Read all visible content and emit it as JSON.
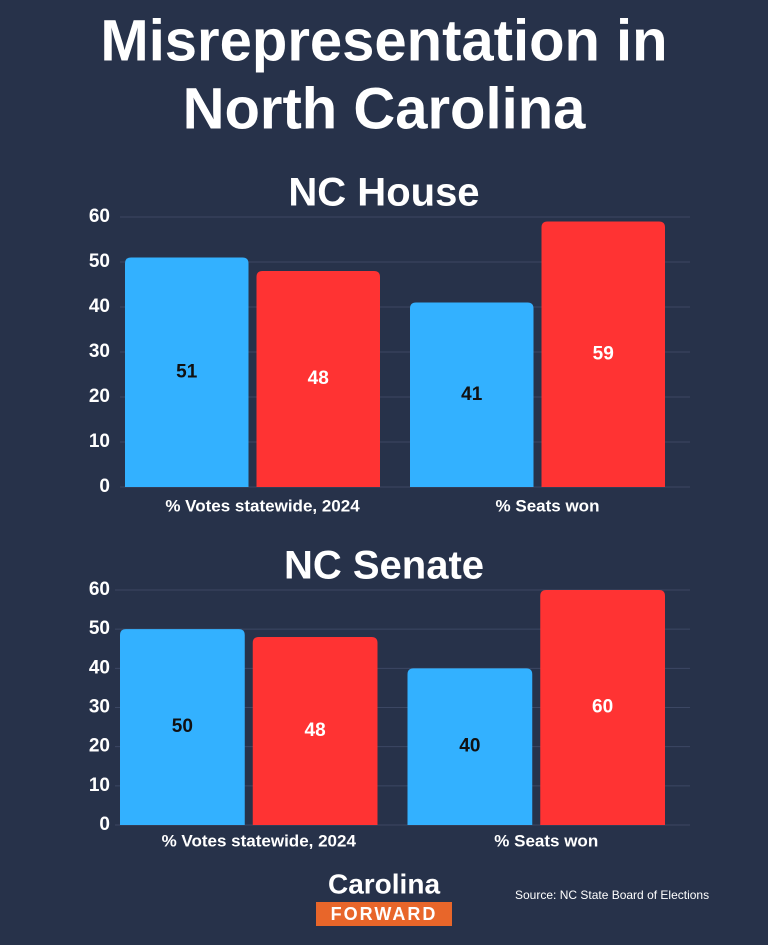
{
  "title": [
    "Misrepresentation in",
    "North Carolina"
  ],
  "chart_data": [
    {
      "type": "bar",
      "title": "NC House",
      "categories": [
        "% Votes statewide, 2024",
        "% Seats won"
      ],
      "series": [
        {
          "color": "#33b1ff",
          "label_color": "#111111",
          "values": [
            51,
            41
          ]
        },
        {
          "color": "#ff3333",
          "label_color": "#ffffff",
          "values": [
            48,
            59
          ]
        }
      ],
      "ylim": [
        0,
        60
      ],
      "yticks": [
        0,
        10,
        20,
        30,
        40,
        50,
        60
      ],
      "grid": true
    },
    {
      "type": "bar",
      "title": "NC Senate",
      "categories": [
        "% Votes statewide, 2024",
        "% Seats won"
      ],
      "series": [
        {
          "color": "#33b1ff",
          "label_color": "#111111",
          "values": [
            50,
            40
          ]
        },
        {
          "color": "#ff3333",
          "label_color": "#ffffff",
          "values": [
            48,
            60
          ]
        }
      ],
      "ylim": [
        0,
        60
      ],
      "yticks": [
        0,
        10,
        20,
        30,
        40,
        50,
        60
      ],
      "grid": true
    }
  ],
  "logo": {
    "top": "Carolina",
    "bottom": "FORWARD"
  },
  "source": "Source: NC State Board of Elections"
}
